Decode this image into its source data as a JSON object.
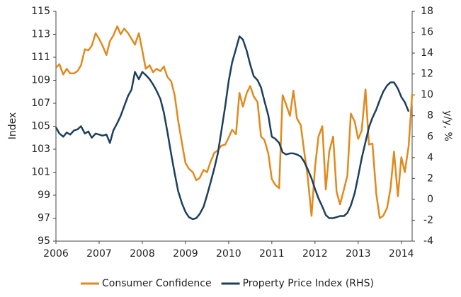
{
  "chart_data": {
    "type": "line",
    "y_label": "Index",
    "y2_label": "y/y, %",
    "xlim": [
      2006,
      2014.25
    ],
    "xticks": [
      2006,
      2007,
      2008,
      2009,
      2010,
      2011,
      2012,
      2013,
      2014
    ],
    "ylim": [
      95,
      115
    ],
    "yticks": [
      95,
      97,
      99,
      101,
      103,
      105,
      107,
      109,
      111,
      113,
      115
    ],
    "y2lim": [
      -4,
      18
    ],
    "y2ticks": [
      -4,
      -2,
      0,
      2,
      4,
      6,
      8,
      10,
      12,
      14,
      16,
      18
    ],
    "legend": "bottom",
    "x": [
      2006,
      2006.08,
      2006.17,
      2006.25,
      2006.33,
      2006.42,
      2006.5,
      2006.58,
      2006.67,
      2006.75,
      2006.83,
      2006.92,
      2007,
      2007.08,
      2007.17,
      2007.25,
      2007.33,
      2007.42,
      2007.5,
      2007.58,
      2007.67,
      2007.75,
      2007.83,
      2007.92,
      2008,
      2008.08,
      2008.17,
      2008.25,
      2008.33,
      2008.42,
      2008.5,
      2008.58,
      2008.67,
      2008.75,
      2008.83,
      2008.92,
      2009,
      2009.08,
      2009.17,
      2009.25,
      2009.33,
      2009.42,
      2009.5,
      2009.58,
      2009.67,
      2009.75,
      2009.83,
      2009.92,
      2010,
      2010.08,
      2010.17,
      2010.25,
      2010.33,
      2010.42,
      2010.5,
      2010.58,
      2010.67,
      2010.75,
      2010.83,
      2010.92,
      2011,
      2011.08,
      2011.17,
      2011.25,
      2011.33,
      2011.42,
      2011.5,
      2011.58,
      2011.67,
      2011.75,
      2011.83,
      2011.92,
      2012,
      2012.08,
      2012.17,
      2012.25,
      2012.33,
      2012.42,
      2012.5,
      2012.58,
      2012.67,
      2012.75,
      2012.83,
      2012.92,
      2013,
      2013.08,
      2013.17,
      2013.25,
      2013.33,
      2013.42,
      2013.5,
      2013.58,
      2013.67,
      2013.75,
      2013.83,
      2013.92,
      2014,
      2014.08,
      2014.17,
      2014.25
    ],
    "series": [
      {
        "name": "Consumer Confidence",
        "color": "#e08a1e",
        "values": [
          110.1,
          110.4,
          109.5,
          110.0,
          109.6,
          109.6,
          109.8,
          110.3,
          111.7,
          111.6,
          112.0,
          113.1,
          112.6,
          112.0,
          111.2,
          112.4,
          112.9,
          113.7,
          113.0,
          113.5,
          113.1,
          112.6,
          112.1,
          113.1,
          111.6,
          110.0,
          110.3,
          109.7,
          110.0,
          109.8,
          110.2,
          109.3,
          108.9,
          107.7,
          105.5,
          103.5,
          101.8,
          101.3,
          101.0,
          100.3,
          100.5,
          101.2,
          101.0,
          101.9,
          102.7,
          102.9,
          103.3,
          103.4,
          104.0,
          104.7,
          104.3,
          107.9,
          106.7,
          107.9,
          108.5,
          107.6,
          107.1,
          104.1,
          103.8,
          102.6,
          100.4,
          99.9,
          99.6,
          107.7,
          106.9,
          105.9,
          108.1,
          105.7,
          105.1,
          102.8,
          100.6,
          97.2,
          101.4,
          104.1,
          105.0,
          99.5,
          102.8,
          104.1,
          99.3,
          98.2,
          99.5,
          100.7,
          106.1,
          105.4,
          103.9,
          104.6,
          108.2,
          103.4,
          103.5,
          99.1,
          97.0,
          97.2,
          97.9,
          99.6,
          102.8,
          98.9,
          102.3,
          101.0,
          103.3,
          107.8
        ]
      },
      {
        "name": "Property Price Index (RHS)",
        "color": "#1c3f5e",
        "axis": "y2",
        "values": [
          6.9,
          6.3,
          6.0,
          6.4,
          6.2,
          6.6,
          6.7,
          7.0,
          6.3,
          6.5,
          5.9,
          6.3,
          6.2,
          6.1,
          6.2,
          5.4,
          6.6,
          7.3,
          8.0,
          8.9,
          9.9,
          10.5,
          12.2,
          11.5,
          12.2,
          11.9,
          11.5,
          11.0,
          10.4,
          9.6,
          8.3,
          6.5,
          4.3,
          2.5,
          0.8,
          -0.4,
          -1.2,
          -1.7,
          -1.9,
          -1.8,
          -1.4,
          -0.7,
          0.4,
          1.6,
          3.0,
          4.4,
          6.5,
          8.9,
          11.3,
          13.1,
          14.4,
          15.6,
          15.3,
          14.2,
          12.9,
          11.8,
          11.4,
          10.7,
          9.4,
          8.0,
          6.0,
          5.8,
          5.4,
          4.5,
          4.3,
          4.4,
          4.4,
          4.3,
          4.1,
          3.6,
          2.9,
          2.0,
          1.0,
          0.1,
          -0.7,
          -1.5,
          -1.8,
          -1.8,
          -1.7,
          -1.6,
          -1.6,
          -1.3,
          -0.6,
          0.6,
          2.2,
          3.9,
          5.5,
          6.9,
          7.8,
          8.6,
          9.5,
          10.3,
          10.9,
          11.2,
          11.2,
          10.6,
          9.8,
          9.3,
          8.4,
          null
        ]
      }
    ]
  }
}
